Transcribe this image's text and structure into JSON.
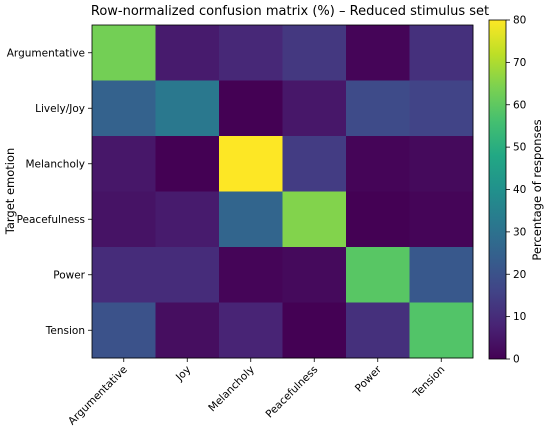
{
  "chart_data": {
    "type": "heatmap",
    "title": "Row-normalized confusion matrix (%) – Reduced stimulus set",
    "ylabel": "Target emotion",
    "xlabel": "",
    "x_categories": [
      "Argumentative",
      "Joy",
      "Melancholy",
      "Peacefulness",
      "Power",
      "Tension"
    ],
    "y_categories": [
      "Argumentative",
      "Lively/Joy",
      "Melancholy",
      "Peacefulness",
      "Power",
      "Tension"
    ],
    "values": [
      [
        63,
        6,
        9,
        13,
        1,
        11
      ],
      [
        25,
        32,
        0,
        5,
        18,
        16
      ],
      [
        5,
        0,
        80,
        14,
        1,
        2
      ],
      [
        4,
        6,
        26,
        65,
        0,
        1
      ],
      [
        10,
        10,
        1,
        2,
        59,
        22
      ],
      [
        20,
        3,
        8,
        0,
        11,
        58
      ]
    ],
    "colorbar": {
      "label": "Percentage of responses",
      "min": 0,
      "max": 80,
      "ticks": [
        "0",
        "10",
        "20",
        "30",
        "40",
        "50",
        "60",
        "70",
        "80"
      ],
      "colormap": "viridis"
    },
    "grid": false
  }
}
